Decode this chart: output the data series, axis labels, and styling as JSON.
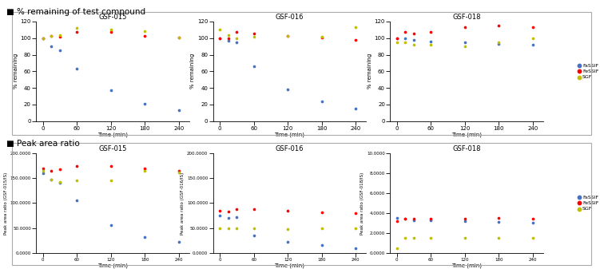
{
  "title1": "■ % remaining of test compound",
  "title2": "■ Peak area ratio",
  "colors": {
    "FaSSIF": "#4472C4",
    "FeSSIF": "#FF0000",
    "SGF": "#BFBF00"
  },
  "legend_labels": [
    "FaSSIF",
    "FeSSIF",
    "SGF"
  ],
  "compounds": [
    "GSF-015",
    "GSF-016",
    "GSF-018"
  ],
  "pct_data": {
    "GSF-015": {
      "time": [
        0,
        15,
        30,
        60,
        120,
        180,
        240
      ],
      "FaSSIF": [
        100,
        90,
        85,
        63,
        37,
        21,
        13
      ],
      "FeSSIF": [
        100,
        103,
        102,
        107,
        107,
        103,
        101
      ],
      "SGF": [
        100,
        103,
        104,
        112,
        110,
        108,
        101
      ]
    },
    "GSF-016": {
      "time": [
        0,
        15,
        30,
        60,
        120,
        180,
        240
      ],
      "FaSSIF": [
        100,
        97,
        95,
        66,
        38,
        24,
        15
      ],
      "FeSSIF": [
        100,
        100,
        107,
        106,
        103,
        101,
        98
      ],
      "SGF": [
        110,
        104,
        100,
        102,
        103,
        102,
        113
      ]
    },
    "GSF-018": {
      "time": [
        0,
        15,
        30,
        60,
        120,
        180,
        240
      ],
      "FaSSIF": [
        100,
        100,
        98,
        96,
        95,
        93,
        92
      ],
      "FeSSIF": [
        100,
        107,
        106,
        107,
        113,
        115,
        113
      ],
      "SGF": [
        95,
        95,
        92,
        92,
        90,
        95,
        100
      ]
    }
  },
  "peak_data": {
    "GSF-015": {
      "time": [
        0,
        15,
        30,
        60,
        120,
        180,
        240
      ],
      "FaSSIF": [
        160,
        148,
        140,
        105,
        55,
        32,
        22
      ],
      "FeSSIF": [
        170,
        165,
        168,
        175,
        175,
        170,
        165
      ],
      "SGF": [
        165,
        148,
        143,
        145,
        145,
        165,
        162
      ]
    },
    "GSF-016": {
      "time": [
        0,
        15,
        30,
        60,
        120,
        180,
        240
      ],
      "FaSSIF": [
        75,
        70,
        72,
        35,
        22,
        15,
        10
      ],
      "FeSSIF": [
        85,
        83,
        88,
        88,
        85,
        82,
        80
      ],
      "SGF": [
        50,
        50,
        50,
        50,
        48,
        50,
        50
      ]
    },
    "GSF-018": {
      "time": [
        0,
        15,
        30,
        60,
        120,
        180,
        240
      ],
      "FaSSIF": [
        3.5,
        3.4,
        3.3,
        3.3,
        3.2,
        3.1,
        3.0
      ],
      "FeSSIF": [
        3.2,
        3.4,
        3.4,
        3.4,
        3.4,
        3.5,
        3.4
      ],
      "SGF": [
        0.5,
        1.5,
        1.5,
        1.5,
        1.5,
        1.5,
        1.5
      ]
    }
  },
  "pct_ylim": [
    0,
    120
  ],
  "pct_yticks": [
    0,
    20,
    40,
    60,
    80,
    100,
    120
  ],
  "peak_ylims": {
    "GSF-015": [
      0,
      200
    ],
    "GSF-016": [
      0,
      200
    ],
    "GSF-018": [
      0,
      10
    ]
  },
  "peak_yticks": {
    "GSF-015": [
      0.0,
      50.0,
      100.0,
      150.0,
      200.0
    ],
    "GSF-016": [
      0.0,
      50.0,
      100.0,
      150.0,
      200.0
    ],
    "GSF-018": [
      0.0,
      2.0,
      4.0,
      6.0,
      8.0,
      10.0
    ]
  },
  "peak_ylabels": {
    "GSF-015": "Peak area ratio (GSF-015/IS)",
    "GSF-016": "Peak area ratio (GSF-016/IS)",
    "GSF-018": "Peak area ratio (GSF-018/IS)"
  },
  "xlabel": "Time (min)",
  "ylabel_pct": "% remaining",
  "xticks": [
    0,
    60,
    120,
    180,
    240
  ],
  "xlim": [
    -12,
    258
  ],
  "scatter_size": 7,
  "bg_color": "#FFFFFF",
  "border_color": "#AAAAAA"
}
